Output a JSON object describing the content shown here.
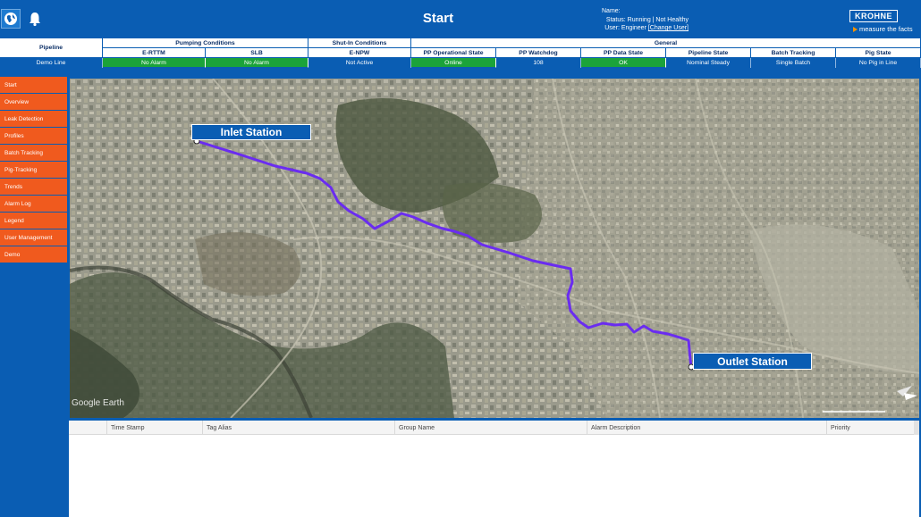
{
  "header": {
    "title": "Start",
    "status_name": "Name:",
    "status_state": "Status: Running | Not Healthy",
    "status_user": "User: Engineer",
    "change_user": "[Change User]",
    "logo": "KROHNE",
    "tagline": "measure the facts",
    "icons": [
      "globe-icon",
      "bell-icon"
    ]
  },
  "grid": {
    "pipeline_label": "Pipeline",
    "pipeline_value": "Demo Line",
    "groups": [
      "Pumping Conditions",
      "Shut-In Conditions",
      "General"
    ],
    "columns": [
      "E-RTTM",
      "SLB",
      "E-NPW",
      "PP Operational State",
      "PP Watchdog",
      "PP Data State",
      "Pipeline State",
      "Batch Tracking",
      "Pig State"
    ],
    "values": [
      "No Alarm",
      "No Alarm",
      "Not Active",
      "Online",
      "108",
      "OK",
      "Nominal Steady",
      "Single Batch",
      "No Pig in Line"
    ]
  },
  "sidebar": {
    "items": [
      "Start",
      "Overview",
      "Leak Detection",
      "Profiles",
      "Batch Tracking",
      "Pig-Tracking",
      "Trends",
      "Alarm Log",
      "Legend",
      "User Management",
      "Demo"
    ]
  },
  "map": {
    "inlet_label": "Inlet Station",
    "outlet_label": "Outlet Station",
    "watermark": "Google Earth",
    "pipeline_color": "#6a2cf0"
  },
  "alarm_table": {
    "columns": [
      "Time Stamp",
      "Tag Alias",
      "Group Name",
      "Alarm Description",
      "Priority"
    ]
  },
  "colors": {
    "header_blue": "#0a5db3",
    "nav_orange": "#f05a1e",
    "ok_green": "#1ba33a"
  }
}
